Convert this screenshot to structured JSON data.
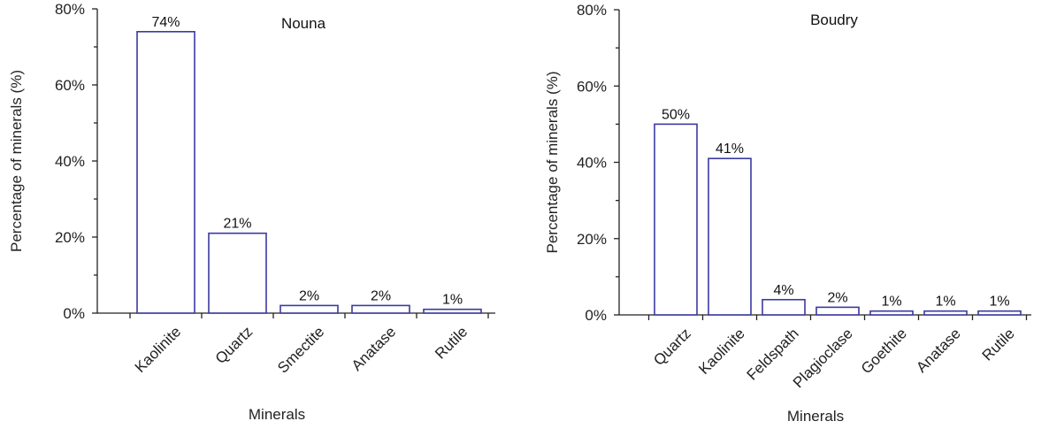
{
  "chart_data": [
    {
      "type": "bar",
      "title": "Nouna",
      "xlabel": "Minerals",
      "ylabel": "Percentage of minerals (%)",
      "ylim": [
        0,
        80
      ],
      "yticks": [
        "0%",
        "20%",
        "40%",
        "60%",
        "80%"
      ],
      "categories": [
        "Kaolinite",
        "Quartz",
        "Smectite",
        "Anatase",
        "Rutile"
      ],
      "values": [
        74,
        21,
        2,
        2,
        1
      ],
      "data_labels": [
        "74%",
        "21%",
        "2%",
        "2%",
        "1%"
      ],
      "grid": false,
      "bar_edge_color": "#3a3aa0"
    },
    {
      "type": "bar",
      "title": "Boudry",
      "xlabel": "Minerals",
      "ylabel": "Percentage of minerals (%)",
      "ylim": [
        0,
        80
      ],
      "yticks": [
        "0%",
        "20%",
        "40%",
        "60%",
        "80%"
      ],
      "categories": [
        "Quartz",
        "Kaolinite",
        "Feldspath",
        "Plagioclase",
        "Goethite",
        "Anatase",
        "Rutile"
      ],
      "values": [
        50,
        41,
        4,
        2,
        1,
        1,
        1
      ],
      "data_labels": [
        "50%",
        "41%",
        "4%",
        "2%",
        "1%",
        "1%",
        "1%"
      ],
      "grid": false,
      "bar_edge_color": "#3a3aa0"
    }
  ]
}
